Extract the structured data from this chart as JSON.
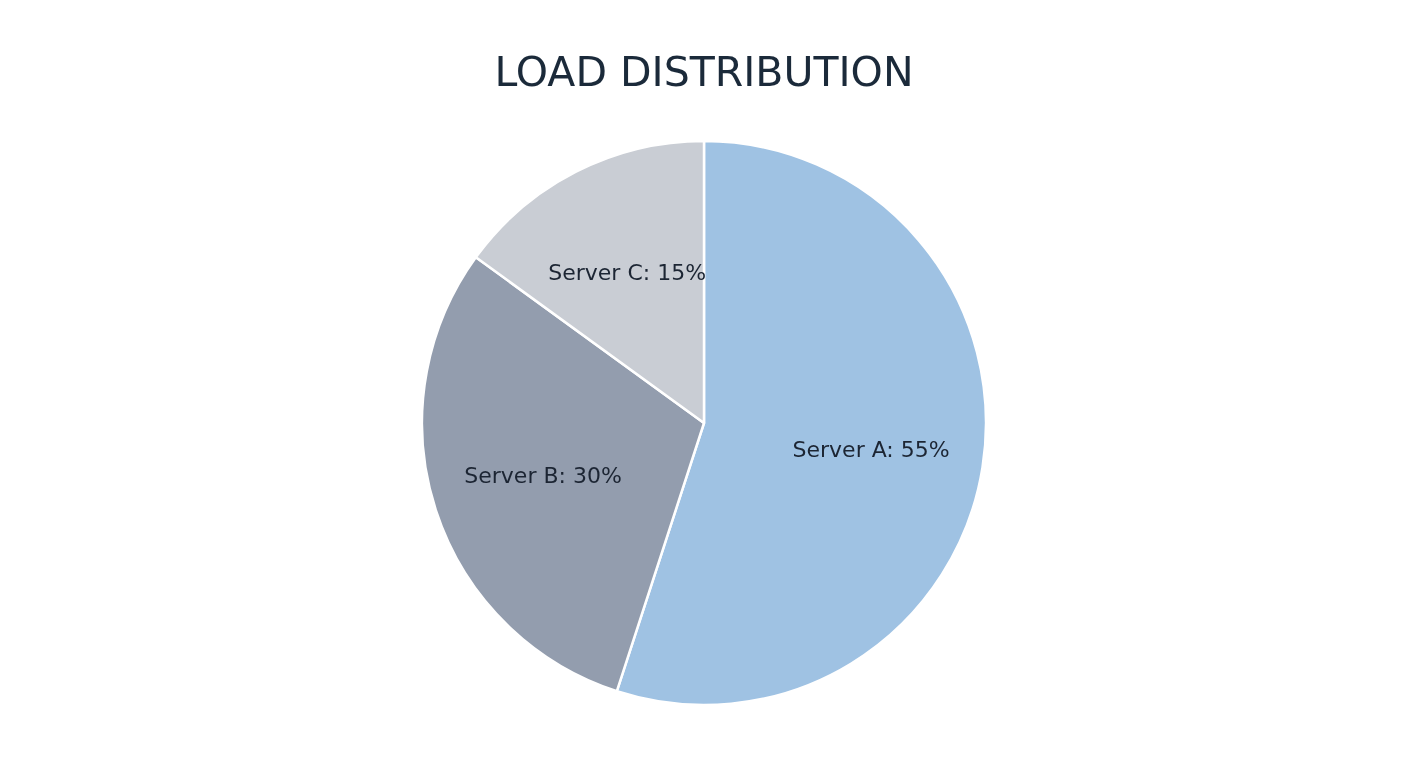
{
  "chart_data": {
    "type": "pie",
    "title": "LOAD DISTRIBUTION",
    "categories": [
      "Server A",
      "Server B",
      "Server C"
    ],
    "values": [
      55,
      30,
      15
    ],
    "colors": [
      "#9fc2e3",
      "#939dae",
      "#c9cdd4"
    ],
    "value_labels": [
      ": 55%",
      ": 30%",
      ": 15%"
    ],
    "legend": false
  }
}
